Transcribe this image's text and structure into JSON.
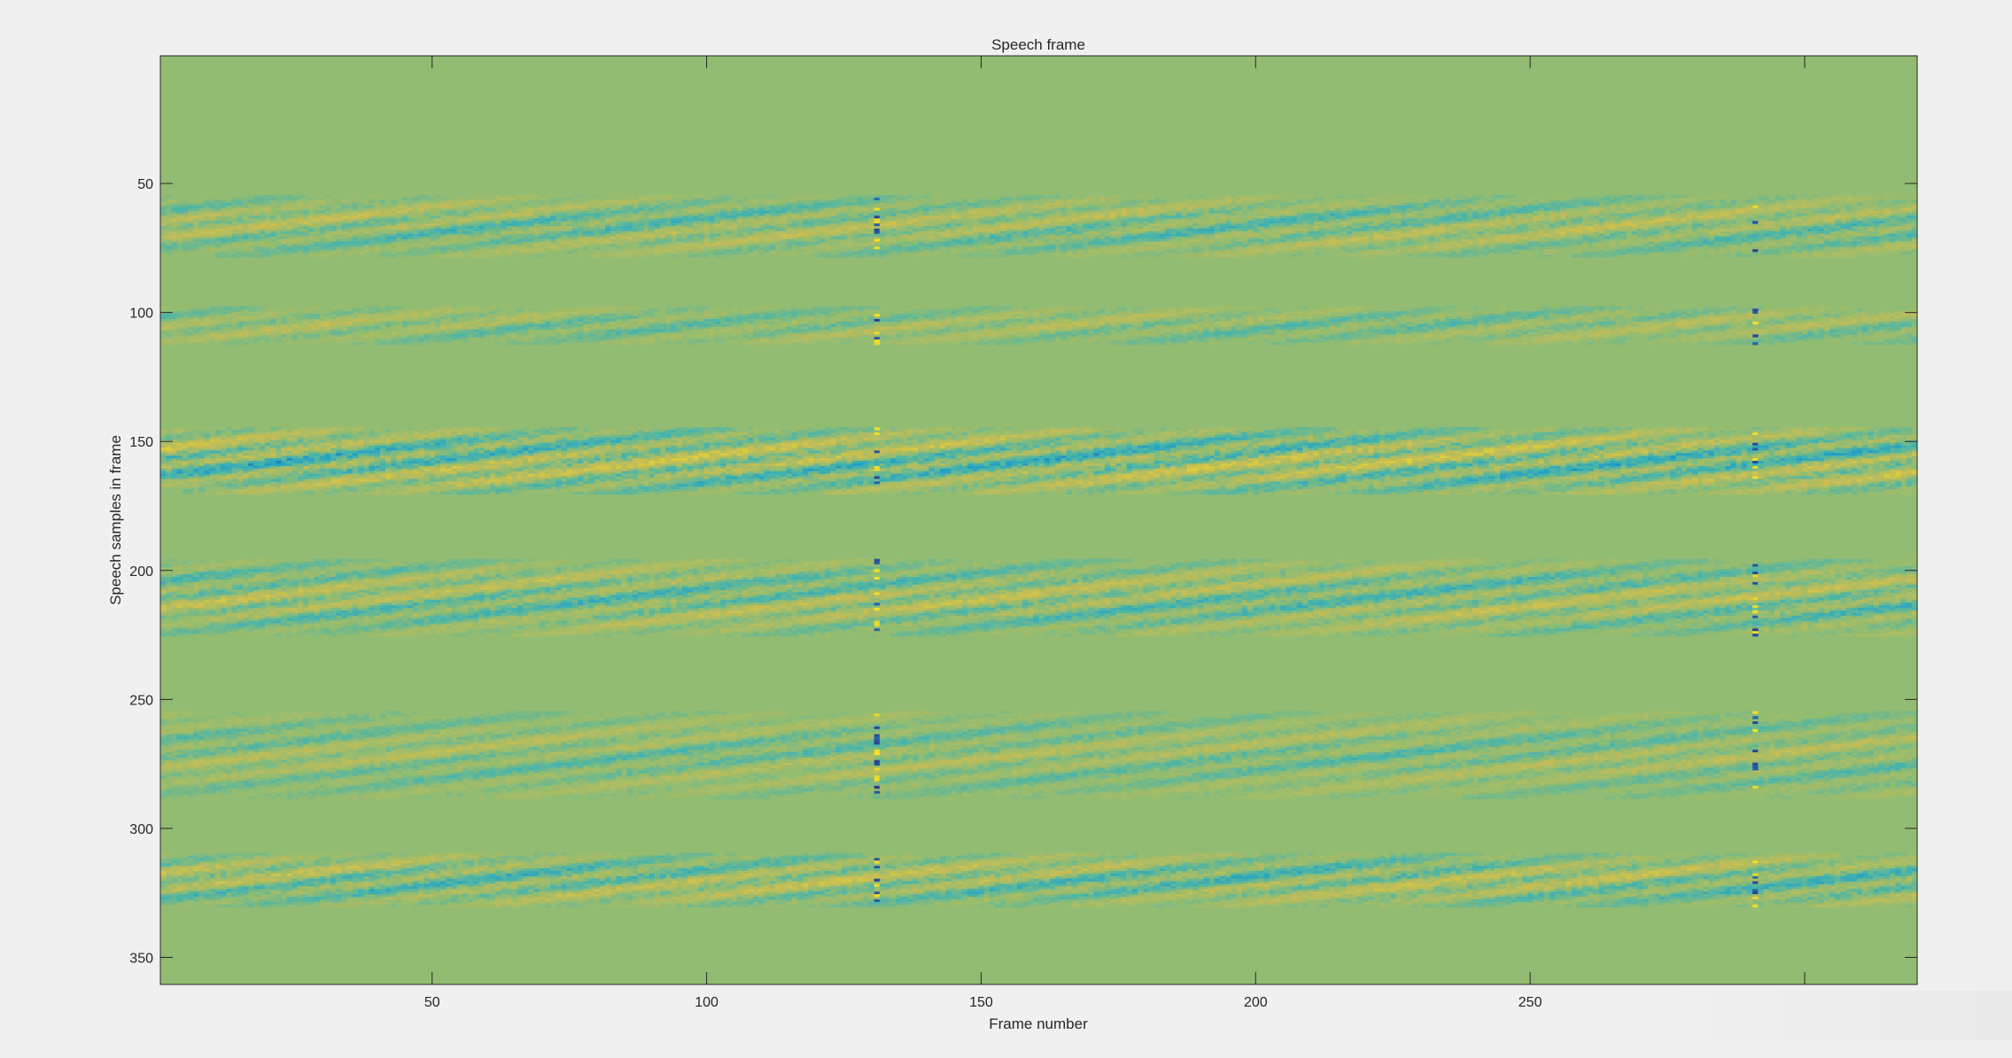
{
  "chart_data": {
    "type": "heatmap",
    "title": "Speech frame",
    "xlabel": "Frame number",
    "ylabel": "Speech samples in frame",
    "xlim": [
      0.5,
      320.5
    ],
    "ylim": [
      0.5,
      360.5
    ],
    "y_reversed": true,
    "x_ticks": [
      50,
      100,
      150,
      200,
      250,
      300
    ],
    "x_tick_labels": [
      "50",
      "100",
      "150",
      "200",
      "250",
      ""
    ],
    "y_ticks": [
      50,
      100,
      150,
      200,
      250,
      300,
      350
    ],
    "y_tick_labels": [
      "50",
      "100",
      "150",
      "200",
      "250",
      "300",
      "350"
    ],
    "colormap": "parula",
    "background_value_color": "#92bc72",
    "colors": {
      "low": "#1d9cc9",
      "mid_low": "#48b4ab",
      "neutral": "#92bc72",
      "mid_high": "#c6bd55",
      "high": "#f5e021",
      "extreme_low": "#2b3a8f"
    },
    "active_bands": [
      {
        "start": 55,
        "end": 78,
        "intensity": 0.55
      },
      {
        "start": 98,
        "end": 112,
        "intensity": 0.45
      },
      {
        "start": 145,
        "end": 170,
        "intensity": 0.8
      },
      {
        "start": 196,
        "end": 225,
        "intensity": 0.6
      },
      {
        "start": 255,
        "end": 288,
        "intensity": 0.45
      },
      {
        "start": 310,
        "end": 330,
        "intensity": 0.65
      }
    ],
    "outlier_frames": [
      131,
      291
    ],
    "grid": false
  }
}
